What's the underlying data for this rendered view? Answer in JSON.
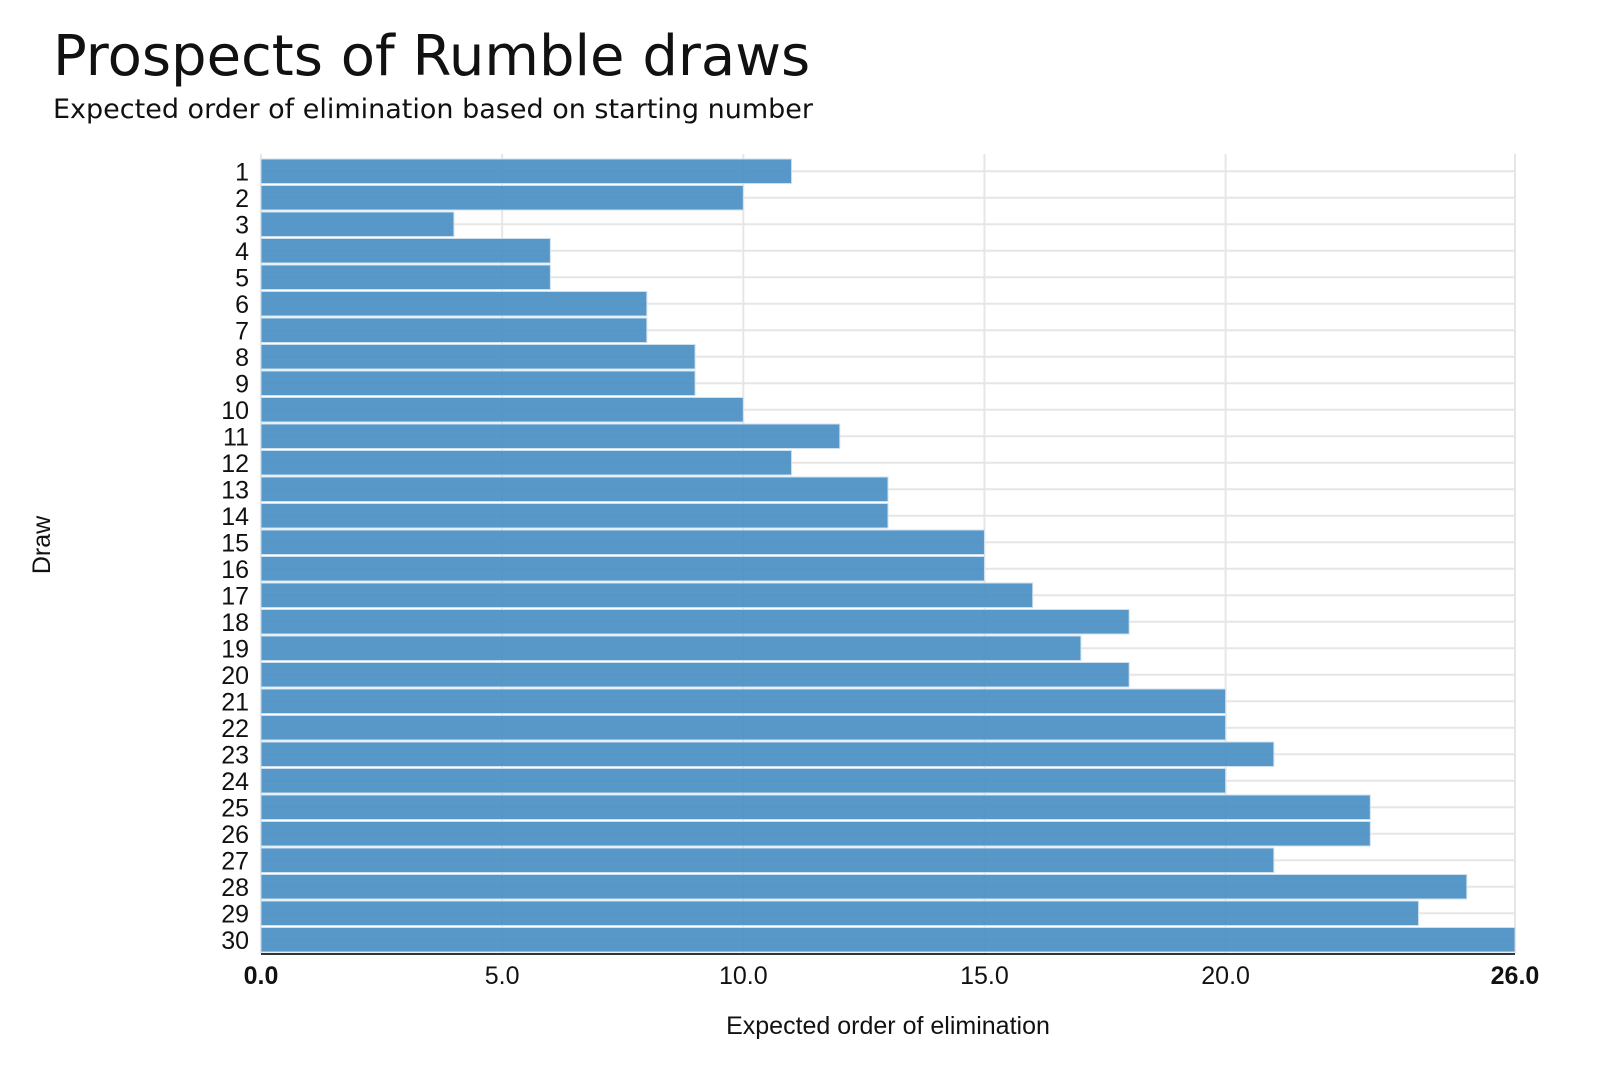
{
  "chart_data": {
    "type": "bar",
    "orientation": "horizontal",
    "title": "Prospects of Rumble draws",
    "subtitle": "Expected order of elimination based on starting number",
    "xlabel": "Expected order of elimination",
    "ylabel": "Draw",
    "categories": [
      "1",
      "2",
      "3",
      "4",
      "5",
      "6",
      "7",
      "8",
      "9",
      "10",
      "11",
      "12",
      "13",
      "14",
      "15",
      "16",
      "17",
      "18",
      "19",
      "20",
      "21",
      "22",
      "23",
      "24",
      "25",
      "26",
      "27",
      "28",
      "29",
      "30"
    ],
    "values": [
      11,
      10,
      4,
      6,
      6,
      8,
      8,
      9,
      9,
      10,
      12,
      11,
      13,
      13,
      15,
      15,
      16,
      18,
      17,
      18,
      20,
      20,
      21,
      20,
      23,
      23,
      21,
      25,
      24,
      26
    ],
    "xlim": [
      0,
      26
    ],
    "xticks": [
      0,
      5,
      10,
      15,
      20,
      26
    ],
    "xtick_labels": [
      "0.0",
      "5.0",
      "10.0",
      "15.0",
      "20.0",
      "26.0"
    ],
    "grid": true,
    "bar_color": "#4a8fc4"
  }
}
